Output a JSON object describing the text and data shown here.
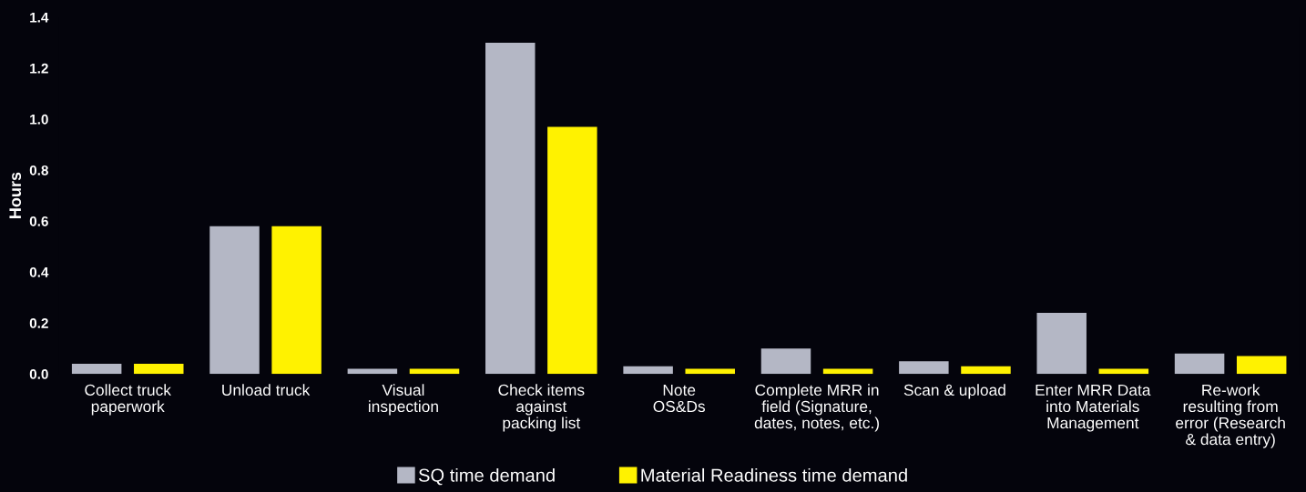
{
  "chart_data": {
    "type": "bar",
    "ylabel": "Hours",
    "categories": [
      "Collect truck\npaperwork",
      "Unload truck",
      "Visual\ninspection",
      "Check items\nagainst\npacking list",
      "Note\nOS&Ds",
      "Complete MRR in\nfield (Signature,\ndates, notes, etc.)",
      "Scan & upload",
      "Enter MRR Data\ninto Materials\nManagement",
      "Re-work\nresulting from\nerror (Research\n& data entry)"
    ],
    "series": [
      {
        "name": "SQ time demand",
        "color": "#b4b7c5",
        "values": [
          0.04,
          0.58,
          0.02,
          1.3,
          0.03,
          0.1,
          0.05,
          0.24,
          0.08
        ]
      },
      {
        "name": "Material Readiness time demand",
        "color": "#fff200",
        "values": [
          0.04,
          0.58,
          0.02,
          0.97,
          0.02,
          0.02,
          0.03,
          0.02,
          0.07
        ]
      }
    ],
    "ylim": [
      0,
      1.4
    ],
    "yticks": [
      {
        "value": 0,
        "label": "0.0"
      },
      0.2,
      0.4,
      0.6,
      0.8,
      {
        "value": 1,
        "label": "1.0"
      },
      1.2,
      1.4
    ],
    "grid": false,
    "legend": "bottom"
  }
}
